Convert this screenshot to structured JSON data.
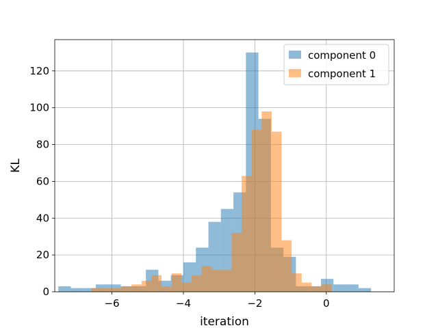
{
  "chart_data": {
    "type": "bar",
    "subtype": "overlapping-histogram",
    "title": "",
    "xlabel": "iteration",
    "ylabel": "KL",
    "xlim": [
      -7.6,
      1.9
    ],
    "ylim": [
      0,
      137
    ],
    "xticks": [
      -6,
      -4,
      -2,
      0
    ],
    "xtick_labels": [
      "−6",
      "−4",
      "−2",
      "0"
    ],
    "yticks": [
      0,
      20,
      40,
      60,
      80,
      100,
      120
    ],
    "grid": true,
    "legend_placement": "top-right",
    "series": [
      {
        "name": "component 0",
        "color": "#1f77b4",
        "alpha": 0.5,
        "bin_edges": [
          -7.5,
          -7.15,
          -6.8,
          -6.45,
          -6.1,
          -5.75,
          -5.4,
          -5.05,
          -4.7,
          -4.35,
          -4.0,
          -3.65,
          -3.3,
          -2.95,
          -2.6,
          -2.25,
          -1.9,
          -1.55,
          -1.2,
          -0.85,
          -0.5,
          -0.15,
          0.2,
          0.55,
          0.9,
          1.25,
          1.6
        ],
        "counts": [
          3,
          2,
          2,
          4,
          4,
          3,
          3,
          12,
          6,
          9,
          16,
          24,
          38,
          45,
          54,
          130,
          94,
          24,
          19,
          3,
          3,
          7,
          4,
          4,
          2,
          0
        ]
      },
      {
        "name": "component 1",
        "color": "#ff7f0e",
        "alpha": 0.5,
        "bin_edges": [
          -6.57,
          -6.29,
          -6.01,
          -5.73,
          -5.45,
          -5.17,
          -4.89,
          -4.61,
          -4.33,
          -4.05,
          -3.77,
          -3.49,
          -3.21,
          -2.93,
          -2.65,
          -2.37,
          -2.09,
          -1.81,
          -1.53,
          -1.25,
          -0.97,
          -0.69,
          -0.41,
          -0.13,
          0.15,
          0.43
        ],
        "counts": [
          2,
          2,
          2,
          3,
          4,
          6,
          9,
          3,
          10,
          5,
          9,
          14,
          12,
          12,
          32,
          63,
          88,
          98,
          87,
          28,
          10,
          5,
          3,
          4,
          0
        ]
      }
    ]
  }
}
